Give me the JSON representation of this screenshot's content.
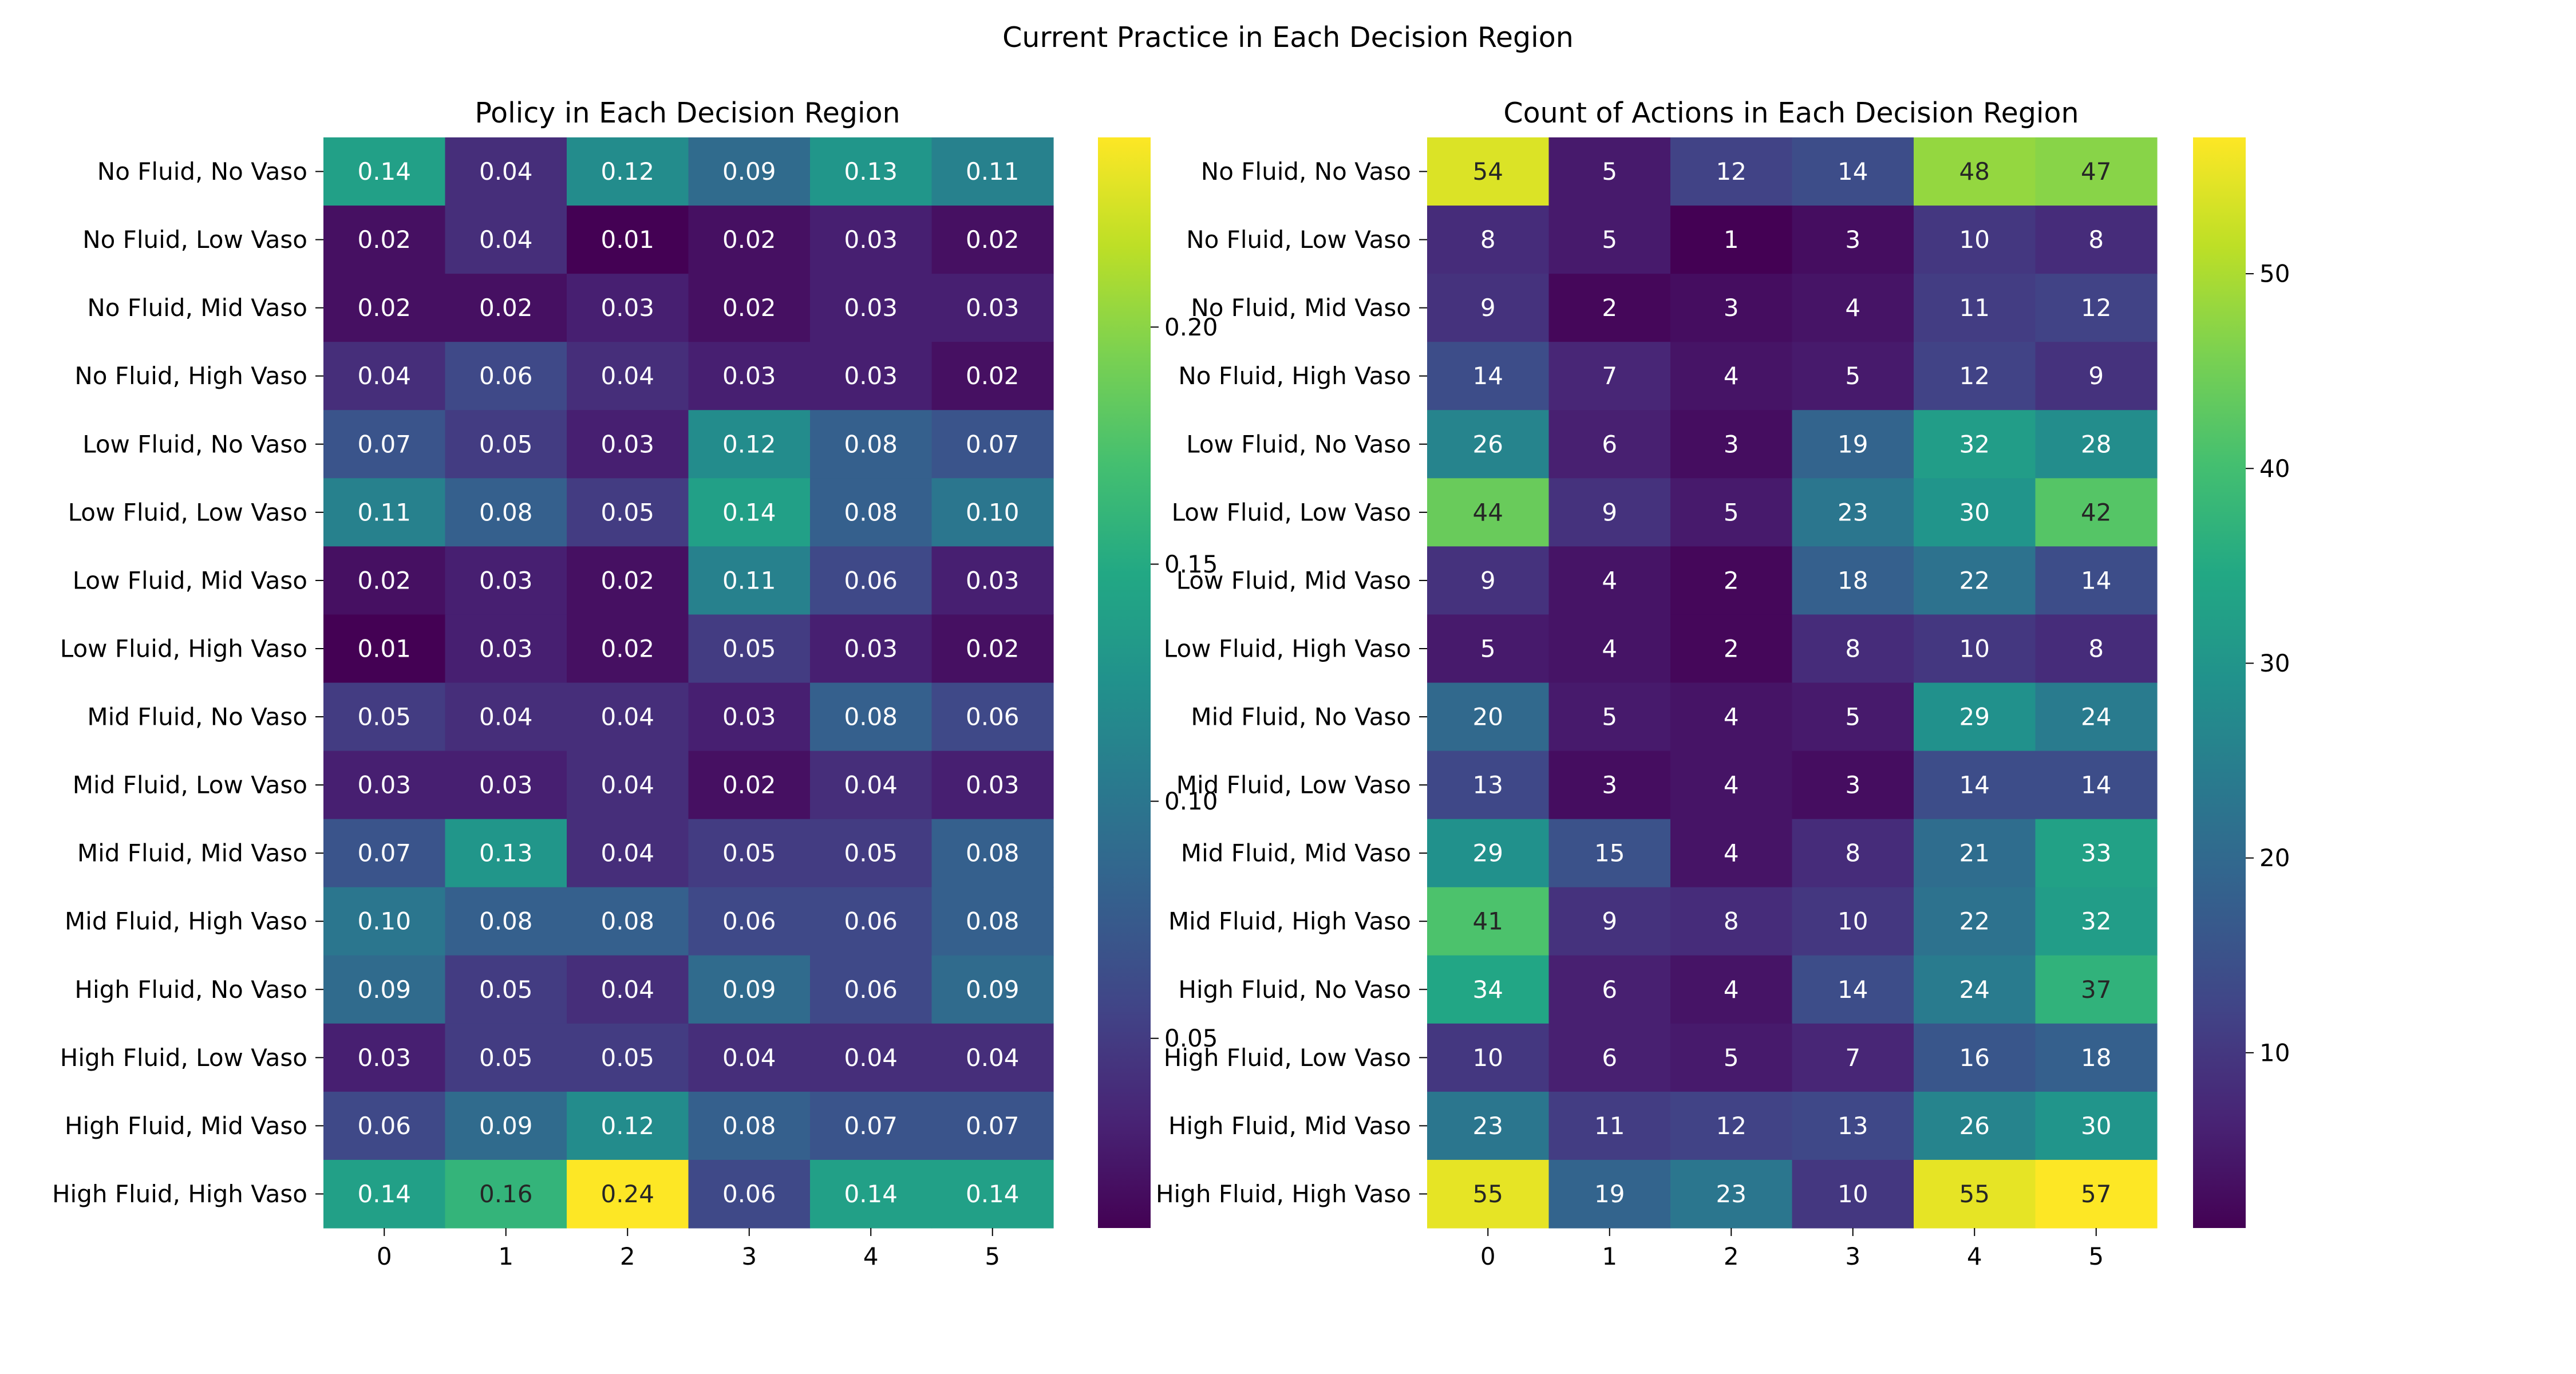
{
  "figure": {
    "suptitle": "Current Practice in Each Decision Region"
  },
  "chart_data": [
    {
      "type": "heatmap",
      "title": "Policy in Each Decision Region",
      "xlabel": "",
      "ylabel": "",
      "columns": [
        "0",
        "1",
        "2",
        "3",
        "4",
        "5"
      ],
      "rows": [
        "No Fluid, No Vaso",
        "No Fluid, Low Vaso",
        "No Fluid, Mid Vaso",
        "No Fluid, High Vaso",
        "Low Fluid, No Vaso",
        "Low Fluid, Low Vaso",
        "Low Fluid, Mid Vaso",
        "Low Fluid, High Vaso",
        "Mid Fluid, No Vaso",
        "Mid Fluid, Low Vaso",
        "Mid Fluid, Mid Vaso",
        "Mid Fluid, High Vaso",
        "High Fluid, No Vaso",
        "High Fluid, Low Vaso",
        "High Fluid, Mid Vaso",
        "High Fluid, High Vaso"
      ],
      "values": [
        [
          0.14,
          0.04,
          0.12,
          0.09,
          0.13,
          0.11
        ],
        [
          0.02,
          0.04,
          0.01,
          0.02,
          0.03,
          0.02
        ],
        [
          0.02,
          0.02,
          0.03,
          0.02,
          0.03,
          0.03
        ],
        [
          0.04,
          0.06,
          0.04,
          0.03,
          0.03,
          0.02
        ],
        [
          0.07,
          0.05,
          0.03,
          0.12,
          0.08,
          0.07
        ],
        [
          0.11,
          0.08,
          0.05,
          0.14,
          0.08,
          0.1
        ],
        [
          0.02,
          0.03,
          0.02,
          0.11,
          0.06,
          0.03
        ],
        [
          0.01,
          0.03,
          0.02,
          0.05,
          0.03,
          0.02
        ],
        [
          0.05,
          0.04,
          0.04,
          0.03,
          0.08,
          0.06
        ],
        [
          0.03,
          0.03,
          0.04,
          0.02,
          0.04,
          0.03
        ],
        [
          0.07,
          0.13,
          0.04,
          0.05,
          0.05,
          0.08
        ],
        [
          0.1,
          0.08,
          0.08,
          0.06,
          0.06,
          0.08
        ],
        [
          0.09,
          0.05,
          0.04,
          0.09,
          0.06,
          0.09
        ],
        [
          0.03,
          0.05,
          0.05,
          0.04,
          0.04,
          0.04
        ],
        [
          0.06,
          0.09,
          0.12,
          0.08,
          0.07,
          0.07
        ],
        [
          0.14,
          0.16,
          0.24,
          0.06,
          0.14,
          0.14
        ]
      ],
      "value_format": "fixed2",
      "colormap": "viridis",
      "color_range": [
        0.01,
        0.24
      ],
      "colorbar_ticks": [
        0.05,
        0.1,
        0.15,
        0.2
      ],
      "colorbar_tick_labels": [
        "0.05",
        "0.10",
        "0.15",
        "0.20"
      ]
    },
    {
      "type": "heatmap",
      "title": "Count of Actions in Each Decision Region",
      "xlabel": "",
      "ylabel": "",
      "columns": [
        "0",
        "1",
        "2",
        "3",
        "4",
        "5"
      ],
      "rows": [
        "No Fluid, No Vaso",
        "No Fluid, Low Vaso",
        "No Fluid, Mid Vaso",
        "No Fluid, High Vaso",
        "Low Fluid, No Vaso",
        "Low Fluid, Low Vaso",
        "Low Fluid, Mid Vaso",
        "Low Fluid, High Vaso",
        "Mid Fluid, No Vaso",
        "Mid Fluid, Low Vaso",
        "Mid Fluid, Mid Vaso",
        "Mid Fluid, High Vaso",
        "High Fluid, No Vaso",
        "High Fluid, Low Vaso",
        "High Fluid, Mid Vaso",
        "High Fluid, High Vaso"
      ],
      "values": [
        [
          54,
          5,
          12,
          14,
          48,
          47
        ],
        [
          8,
          5,
          1,
          3,
          10,
          8
        ],
        [
          9,
          2,
          3,
          4,
          11,
          12
        ],
        [
          14,
          7,
          4,
          5,
          12,
          9
        ],
        [
          26,
          6,
          3,
          19,
          32,
          28
        ],
        [
          44,
          9,
          5,
          23,
          30,
          42
        ],
        [
          9,
          4,
          2,
          18,
          22,
          14
        ],
        [
          5,
          4,
          2,
          8,
          10,
          8
        ],
        [
          20,
          5,
          4,
          5,
          29,
          24
        ],
        [
          13,
          3,
          4,
          3,
          14,
          14
        ],
        [
          29,
          15,
          4,
          8,
          21,
          33
        ],
        [
          41,
          9,
          8,
          10,
          22,
          32
        ],
        [
          34,
          6,
          4,
          14,
          24,
          37
        ],
        [
          10,
          6,
          5,
          7,
          16,
          18
        ],
        [
          23,
          11,
          12,
          13,
          26,
          30
        ],
        [
          55,
          19,
          23,
          10,
          55,
          57
        ]
      ],
      "value_format": "int",
      "colormap": "viridis",
      "color_range": [
        1,
        57
      ],
      "colorbar_ticks": [
        10,
        20,
        30,
        40,
        50
      ],
      "colorbar_tick_labels": [
        "10",
        "20",
        "30",
        "40",
        "50"
      ]
    }
  ]
}
